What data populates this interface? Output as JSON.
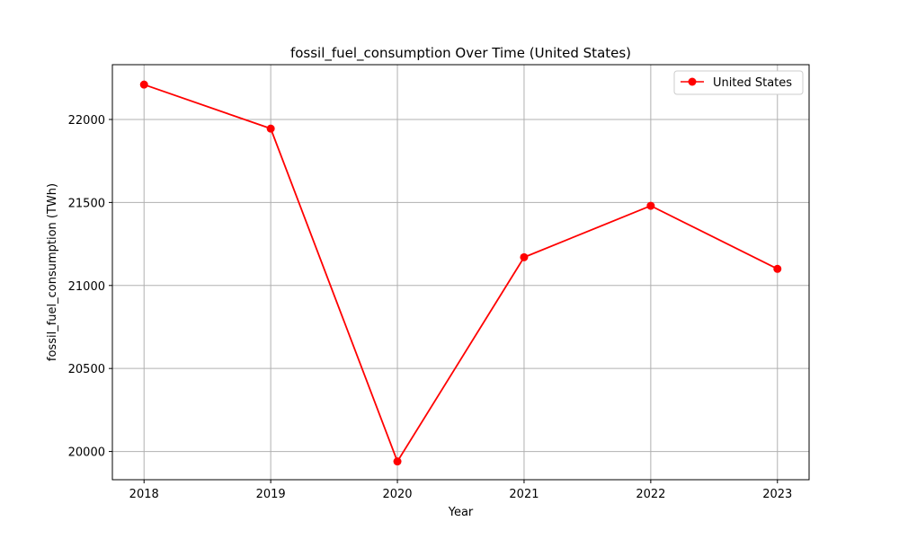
{
  "chart_data": {
    "type": "line",
    "title": "fossil_fuel_consumption Over Time (United States)",
    "xlabel": "Year",
    "ylabel": "fossil_fuel_consumption (TWh)",
    "x": [
      2018,
      2019,
      2020,
      2021,
      2022,
      2023
    ],
    "x_tick_labels": [
      "2018",
      "2019",
      "2020",
      "2021",
      "2022",
      "2023"
    ],
    "y_ticks": [
      20000,
      20500,
      21000,
      21500,
      22000
    ],
    "y_tick_labels": [
      "20000",
      "20500",
      "21000",
      "21500",
      "22000"
    ],
    "xlim": [
      2017.75,
      2023.25
    ],
    "ylim": [
      19830,
      22330
    ],
    "grid": true,
    "legend_position": "top-right",
    "series": [
      {
        "name": "United States",
        "color": "#ff0000",
        "marker": "circle",
        "values": [
          22210,
          21945,
          19940,
          21170,
          21480,
          21100
        ]
      }
    ]
  }
}
